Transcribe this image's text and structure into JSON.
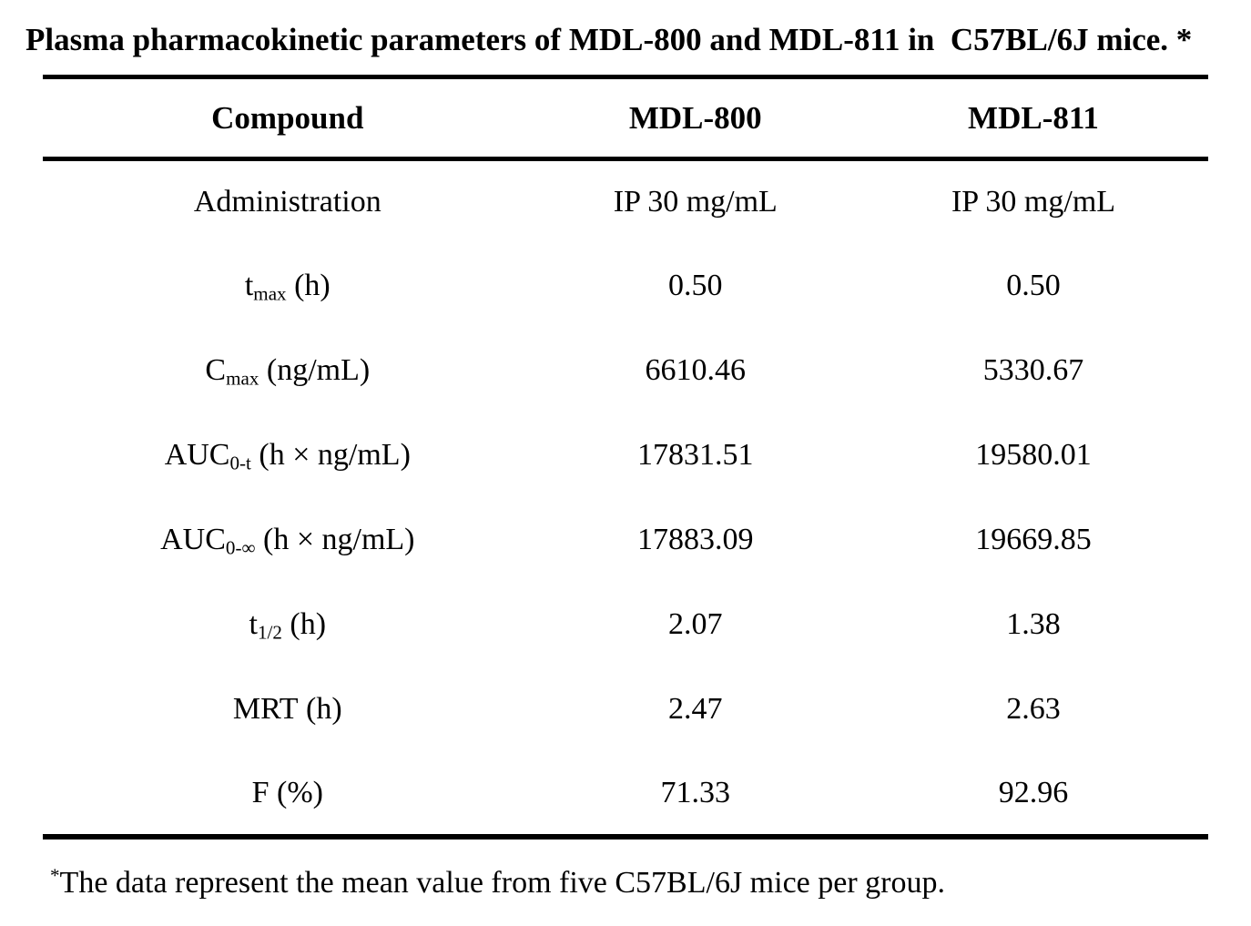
{
  "title": "Plasma pharmacokinetic parameters of MDL-800 and MDL-811 in  C57BL/6J mice. *",
  "table": {
    "columns": {
      "parameter": "Compound",
      "mdl800": "MDL-800",
      "mdl811": "MDL-811"
    },
    "rows": [
      {
        "label": {
          "base": "Administration",
          "sub": "",
          "rest": ""
        },
        "mdl800": "IP 30 mg/mL",
        "mdl811": "IP 30 mg/mL"
      },
      {
        "label": {
          "base": "t",
          "sub": "max",
          "rest": " (h)"
        },
        "mdl800": "0.50",
        "mdl811": "0.50"
      },
      {
        "label": {
          "base": "C",
          "sub": "max",
          "rest": " (ng/mL)"
        },
        "mdl800": "6610.46",
        "mdl811": "5330.67"
      },
      {
        "label": {
          "base": "AUC",
          "sub": "0-t",
          "rest": " (h × ng/mL)"
        },
        "mdl800": "17831.51",
        "mdl811": "19580.01"
      },
      {
        "label": {
          "base": "AUC",
          "sub": "0-∞",
          "rest": " (h × ng/mL)"
        },
        "mdl800": "17883.09",
        "mdl811": "19669.85"
      },
      {
        "label": {
          "base": "t",
          "sub": "1/2",
          "rest": " (h)"
        },
        "mdl800": "2.07",
        "mdl811": "1.38"
      },
      {
        "label": {
          "base": "MRT",
          "sub": "",
          "rest": " (h)"
        },
        "mdl800": "2.47",
        "mdl811": "2.63"
      },
      {
        "label": {
          "base": "F",
          "sub": "",
          "rest": " (%)"
        },
        "mdl800": "71.33",
        "mdl811": "92.96"
      }
    ]
  },
  "footnote": {
    "marker": "*",
    "text": "The data represent the mean value from five C57BL/6J mice per group."
  },
  "colors": {
    "text": "#000000",
    "background": "#ffffff",
    "rule": "#000000"
  }
}
